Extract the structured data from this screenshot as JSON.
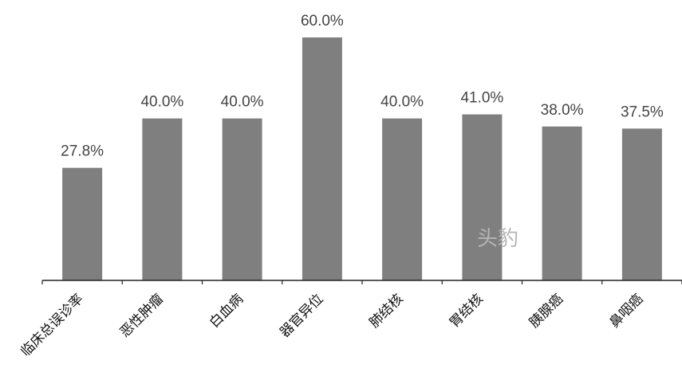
{
  "watermark": "头豹",
  "chart_data": {
    "type": "bar",
    "categories": [
      "临床总误诊率",
      "恶性肿瘤",
      "白血病",
      "器官异位",
      "肺结核",
      "胃结核",
      "胰腺癌",
      "鼻咽癌"
    ],
    "values": [
      27.8,
      40.0,
      40.0,
      60.0,
      40.0,
      41.0,
      38.0,
      37.5
    ],
    "data_labels": [
      "27.8%",
      "40.0%",
      "40.0%",
      "60.0%",
      "40.0%",
      "41.0%",
      "38.0%",
      "37.5%"
    ],
    "ylim": [
      0,
      60
    ],
    "bar_color": "#7f7f7f",
    "grid": false,
    "title": "",
    "xlabel": "",
    "ylabel": ""
  }
}
